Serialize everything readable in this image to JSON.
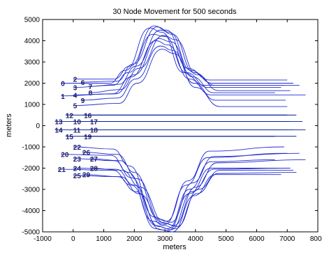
{
  "chart_data": {
    "type": "line",
    "title": "30 Node Movement for 500 seconds",
    "xlabel": "meters",
    "ylabel": "meters",
    "xlim": [
      -1000,
      8000
    ],
    "ylim": [
      -5000,
      5000
    ],
    "xticks": [
      -1000,
      0,
      1000,
      2000,
      3000,
      4000,
      5000,
      6000,
      7000,
      8000
    ],
    "yticks": [
      -5000,
      -4000,
      -3000,
      -2000,
      -1000,
      0,
      1000,
      2000,
      3000,
      4000,
      5000
    ],
    "grid": false,
    "node_labels": [
      {
        "text": "0",
        "x": -400,
        "y": 2000
      },
      {
        "text": "2",
        "x": 0,
        "y": 2200
      },
      {
        "text": "6",
        "x": 250,
        "y": 2050
      },
      {
        "text": "3",
        "x": 0,
        "y": 1800
      },
      {
        "text": "7",
        "x": 500,
        "y": 1850
      },
      {
        "text": "1",
        "x": -400,
        "y": 1400
      },
      {
        "text": "4",
        "x": 0,
        "y": 1450
      },
      {
        "text": "8",
        "x": 500,
        "y": 1550
      },
      {
        "text": "9",
        "x": 250,
        "y": 1200
      },
      {
        "text": "5",
        "x": 0,
        "y": 950
      },
      {
        "text": "12",
        "x": -250,
        "y": 500
      },
      {
        "text": "16",
        "x": 350,
        "y": 500
      },
      {
        "text": "13",
        "x": -600,
        "y": 200
      },
      {
        "text": "10",
        "x": 0,
        "y": 200
      },
      {
        "text": "17",
        "x": 550,
        "y": 200
      },
      {
        "text": "14",
        "x": -600,
        "y": -200
      },
      {
        "text": "11",
        "x": 0,
        "y": -200
      },
      {
        "text": "18",
        "x": 550,
        "y": -200
      },
      {
        "text": "15",
        "x": -250,
        "y": -500
      },
      {
        "text": "19",
        "x": 350,
        "y": -500
      },
      {
        "text": "22",
        "x": 0,
        "y": -1000
      },
      {
        "text": "20",
        "x": -400,
        "y": -1350
      },
      {
        "text": "26",
        "x": 300,
        "y": -1250
      },
      {
        "text": "23",
        "x": 0,
        "y": -1550
      },
      {
        "text": "27",
        "x": 550,
        "y": -1550
      },
      {
        "text": "21",
        "x": -500,
        "y": -2050
      },
      {
        "text": "24",
        "x": 0,
        "y": -2000
      },
      {
        "text": "28",
        "x": 550,
        "y": -2000
      },
      {
        "text": "25",
        "x": 0,
        "y": -2350
      },
      {
        "text": "29",
        "x": 300,
        "y": -2300
      }
    ],
    "series": [
      {
        "values": [
          [
            -400,
            2000
          ],
          [
            1200,
            2000
          ],
          [
            1700,
            2600
          ],
          [
            2500,
            4600
          ],
          [
            2900,
            4400
          ],
          [
            3600,
            2500
          ],
          [
            4300,
            1900
          ],
          [
            6900,
            1900
          ]
        ]
      },
      {
        "values": [
          [
            0,
            2200
          ],
          [
            1350,
            2200
          ],
          [
            1850,
            2800
          ],
          [
            2650,
            4700
          ],
          [
            3050,
            4500
          ],
          [
            3750,
            2700
          ],
          [
            4450,
            2150
          ],
          [
            7000,
            2150
          ]
        ]
      },
      {
        "values": [
          [
            250,
            2050
          ],
          [
            1450,
            2100
          ],
          [
            1950,
            2900
          ],
          [
            2750,
            4650
          ],
          [
            3150,
            4400
          ],
          [
            3850,
            2600
          ],
          [
            4550,
            2000
          ],
          [
            7200,
            2000
          ]
        ]
      },
      {
        "values": [
          [
            0,
            1800
          ],
          [
            1300,
            1900
          ],
          [
            1800,
            2500
          ],
          [
            2600,
            4300
          ],
          [
            3000,
            4200
          ],
          [
            3700,
            2500
          ],
          [
            4400,
            1800
          ],
          [
            6800,
            1800
          ]
        ]
      },
      {
        "values": [
          [
            500,
            1850
          ],
          [
            1500,
            1950
          ],
          [
            2050,
            2800
          ],
          [
            2850,
            4500
          ],
          [
            3250,
            4300
          ],
          [
            3950,
            2500
          ],
          [
            4650,
            1900
          ],
          [
            7400,
            1900
          ]
        ]
      },
      {
        "values": [
          [
            -400,
            1400
          ],
          [
            1300,
            1500
          ],
          [
            1900,
            2300
          ],
          [
            2700,
            4000
          ],
          [
            3100,
            3800
          ],
          [
            3800,
            2200
          ],
          [
            4500,
            1450
          ],
          [
            7600,
            1450
          ]
        ]
      },
      {
        "values": [
          [
            0,
            1450
          ],
          [
            1400,
            1500
          ],
          [
            2000,
            2400
          ],
          [
            2800,
            4100
          ],
          [
            3200,
            3950
          ],
          [
            3900,
            2300
          ],
          [
            4600,
            1550
          ],
          [
            6600,
            1550
          ]
        ]
      },
      {
        "values": [
          [
            500,
            1550
          ],
          [
            1550,
            1700
          ],
          [
            2150,
            2700
          ],
          [
            2950,
            4250
          ],
          [
            3350,
            4050
          ],
          [
            4050,
            2400
          ],
          [
            4750,
            1650
          ],
          [
            7100,
            1650
          ]
        ]
      },
      {
        "values": [
          [
            250,
            1200
          ],
          [
            1450,
            1300
          ],
          [
            2050,
            2200
          ],
          [
            2850,
            3750
          ],
          [
            3250,
            3550
          ],
          [
            3950,
            2000
          ],
          [
            4650,
            1200
          ],
          [
            6950,
            1200
          ]
        ]
      },
      {
        "values": [
          [
            0,
            950
          ],
          [
            1500,
            1050
          ],
          [
            2100,
            2000
          ],
          [
            2900,
            3600
          ],
          [
            3300,
            3400
          ],
          [
            4000,
            1800
          ],
          [
            4800,
            900
          ],
          [
            7000,
            900
          ]
        ]
      },
      {
        "values": [
          [
            -250,
            500
          ],
          [
            7000,
            500
          ]
        ]
      },
      {
        "values": [
          [
            350,
            500
          ],
          [
            7300,
            500
          ]
        ]
      },
      {
        "values": [
          [
            -600,
            200
          ],
          [
            6900,
            200
          ]
        ]
      },
      {
        "values": [
          [
            0,
            200
          ],
          [
            7100,
            200
          ]
        ]
      },
      {
        "values": [
          [
            550,
            200
          ],
          [
            7500,
            200
          ]
        ]
      },
      {
        "values": [
          [
            -600,
            -200
          ],
          [
            7600,
            -200
          ]
        ]
      },
      {
        "values": [
          [
            0,
            -200
          ],
          [
            7000,
            -200
          ]
        ]
      },
      {
        "values": [
          [
            550,
            -200
          ],
          [
            7200,
            -200
          ]
        ]
      },
      {
        "values": [
          [
            -250,
            -500
          ],
          [
            6600,
            -500
          ]
        ]
      },
      {
        "values": [
          [
            350,
            -500
          ],
          [
            7300,
            -500
          ]
        ]
      },
      {
        "values": [
          [
            0,
            -1000
          ],
          [
            1300,
            -1100
          ],
          [
            1850,
            -1900
          ],
          [
            2650,
            -4300
          ],
          [
            3050,
            -4500
          ],
          [
            3750,
            -2600
          ],
          [
            4450,
            -1200
          ],
          [
            6900,
            -1000
          ]
        ]
      },
      {
        "values": [
          [
            -400,
            -1350
          ],
          [
            1250,
            -1400
          ],
          [
            1800,
            -2200
          ],
          [
            2600,
            -4500
          ],
          [
            3000,
            -4650
          ],
          [
            3700,
            -2800
          ],
          [
            4400,
            -1500
          ],
          [
            7000,
            -1300
          ]
        ]
      },
      {
        "values": [
          [
            300,
            -1250
          ],
          [
            1450,
            -1350
          ],
          [
            2000,
            -2200
          ],
          [
            2800,
            -4400
          ],
          [
            3200,
            -4550
          ],
          [
            3900,
            -2700
          ],
          [
            4600,
            -1450
          ],
          [
            7400,
            -1300
          ]
        ]
      },
      {
        "values": [
          [
            0,
            -1550
          ],
          [
            1350,
            -1650
          ],
          [
            1900,
            -2450
          ],
          [
            2700,
            -4700
          ],
          [
            3100,
            -4850
          ],
          [
            3800,
            -3000
          ],
          [
            4500,
            -1700
          ],
          [
            6600,
            -1600
          ]
        ]
      },
      {
        "values": [
          [
            550,
            -1550
          ],
          [
            1550,
            -1650
          ],
          [
            2100,
            -2500
          ],
          [
            2900,
            -4550
          ],
          [
            3300,
            -4700
          ],
          [
            4000,
            -2900
          ],
          [
            4700,
            -1750
          ],
          [
            7600,
            -1600
          ]
        ]
      },
      {
        "values": [
          [
            -500,
            -2050
          ],
          [
            1300,
            -2100
          ],
          [
            1900,
            -2800
          ],
          [
            2700,
            -4850
          ],
          [
            3100,
            -4950
          ],
          [
            3800,
            -3200
          ],
          [
            4500,
            -2000
          ],
          [
            6700,
            -2000
          ]
        ]
      },
      {
        "values": [
          [
            0,
            -2000
          ],
          [
            1400,
            -2050
          ],
          [
            2000,
            -2800
          ],
          [
            2800,
            -4750
          ],
          [
            3200,
            -4900
          ],
          [
            3900,
            -3100
          ],
          [
            4600,
            -2050
          ],
          [
            7100,
            -2000
          ]
        ]
      },
      {
        "values": [
          [
            550,
            -2000
          ],
          [
            1600,
            -2100
          ],
          [
            2200,
            -2900
          ],
          [
            3000,
            -4600
          ],
          [
            3400,
            -4750
          ],
          [
            4100,
            -3000
          ],
          [
            4800,
            -2100
          ],
          [
            7200,
            -2100
          ]
        ]
      },
      {
        "values": [
          [
            0,
            -2350
          ],
          [
            1450,
            -2400
          ],
          [
            2050,
            -3100
          ],
          [
            2850,
            -4900
          ],
          [
            3250,
            -5000
          ],
          [
            3950,
            -3300
          ],
          [
            4650,
            -2300
          ],
          [
            6800,
            -2300
          ]
        ]
      },
      {
        "values": [
          [
            300,
            -2300
          ],
          [
            1550,
            -2400
          ],
          [
            2150,
            -3200
          ],
          [
            2950,
            -4700
          ],
          [
            3350,
            -4850
          ],
          [
            4050,
            -3200
          ],
          [
            4750,
            -2250
          ],
          [
            7300,
            -2200
          ]
        ]
      }
    ]
  }
}
